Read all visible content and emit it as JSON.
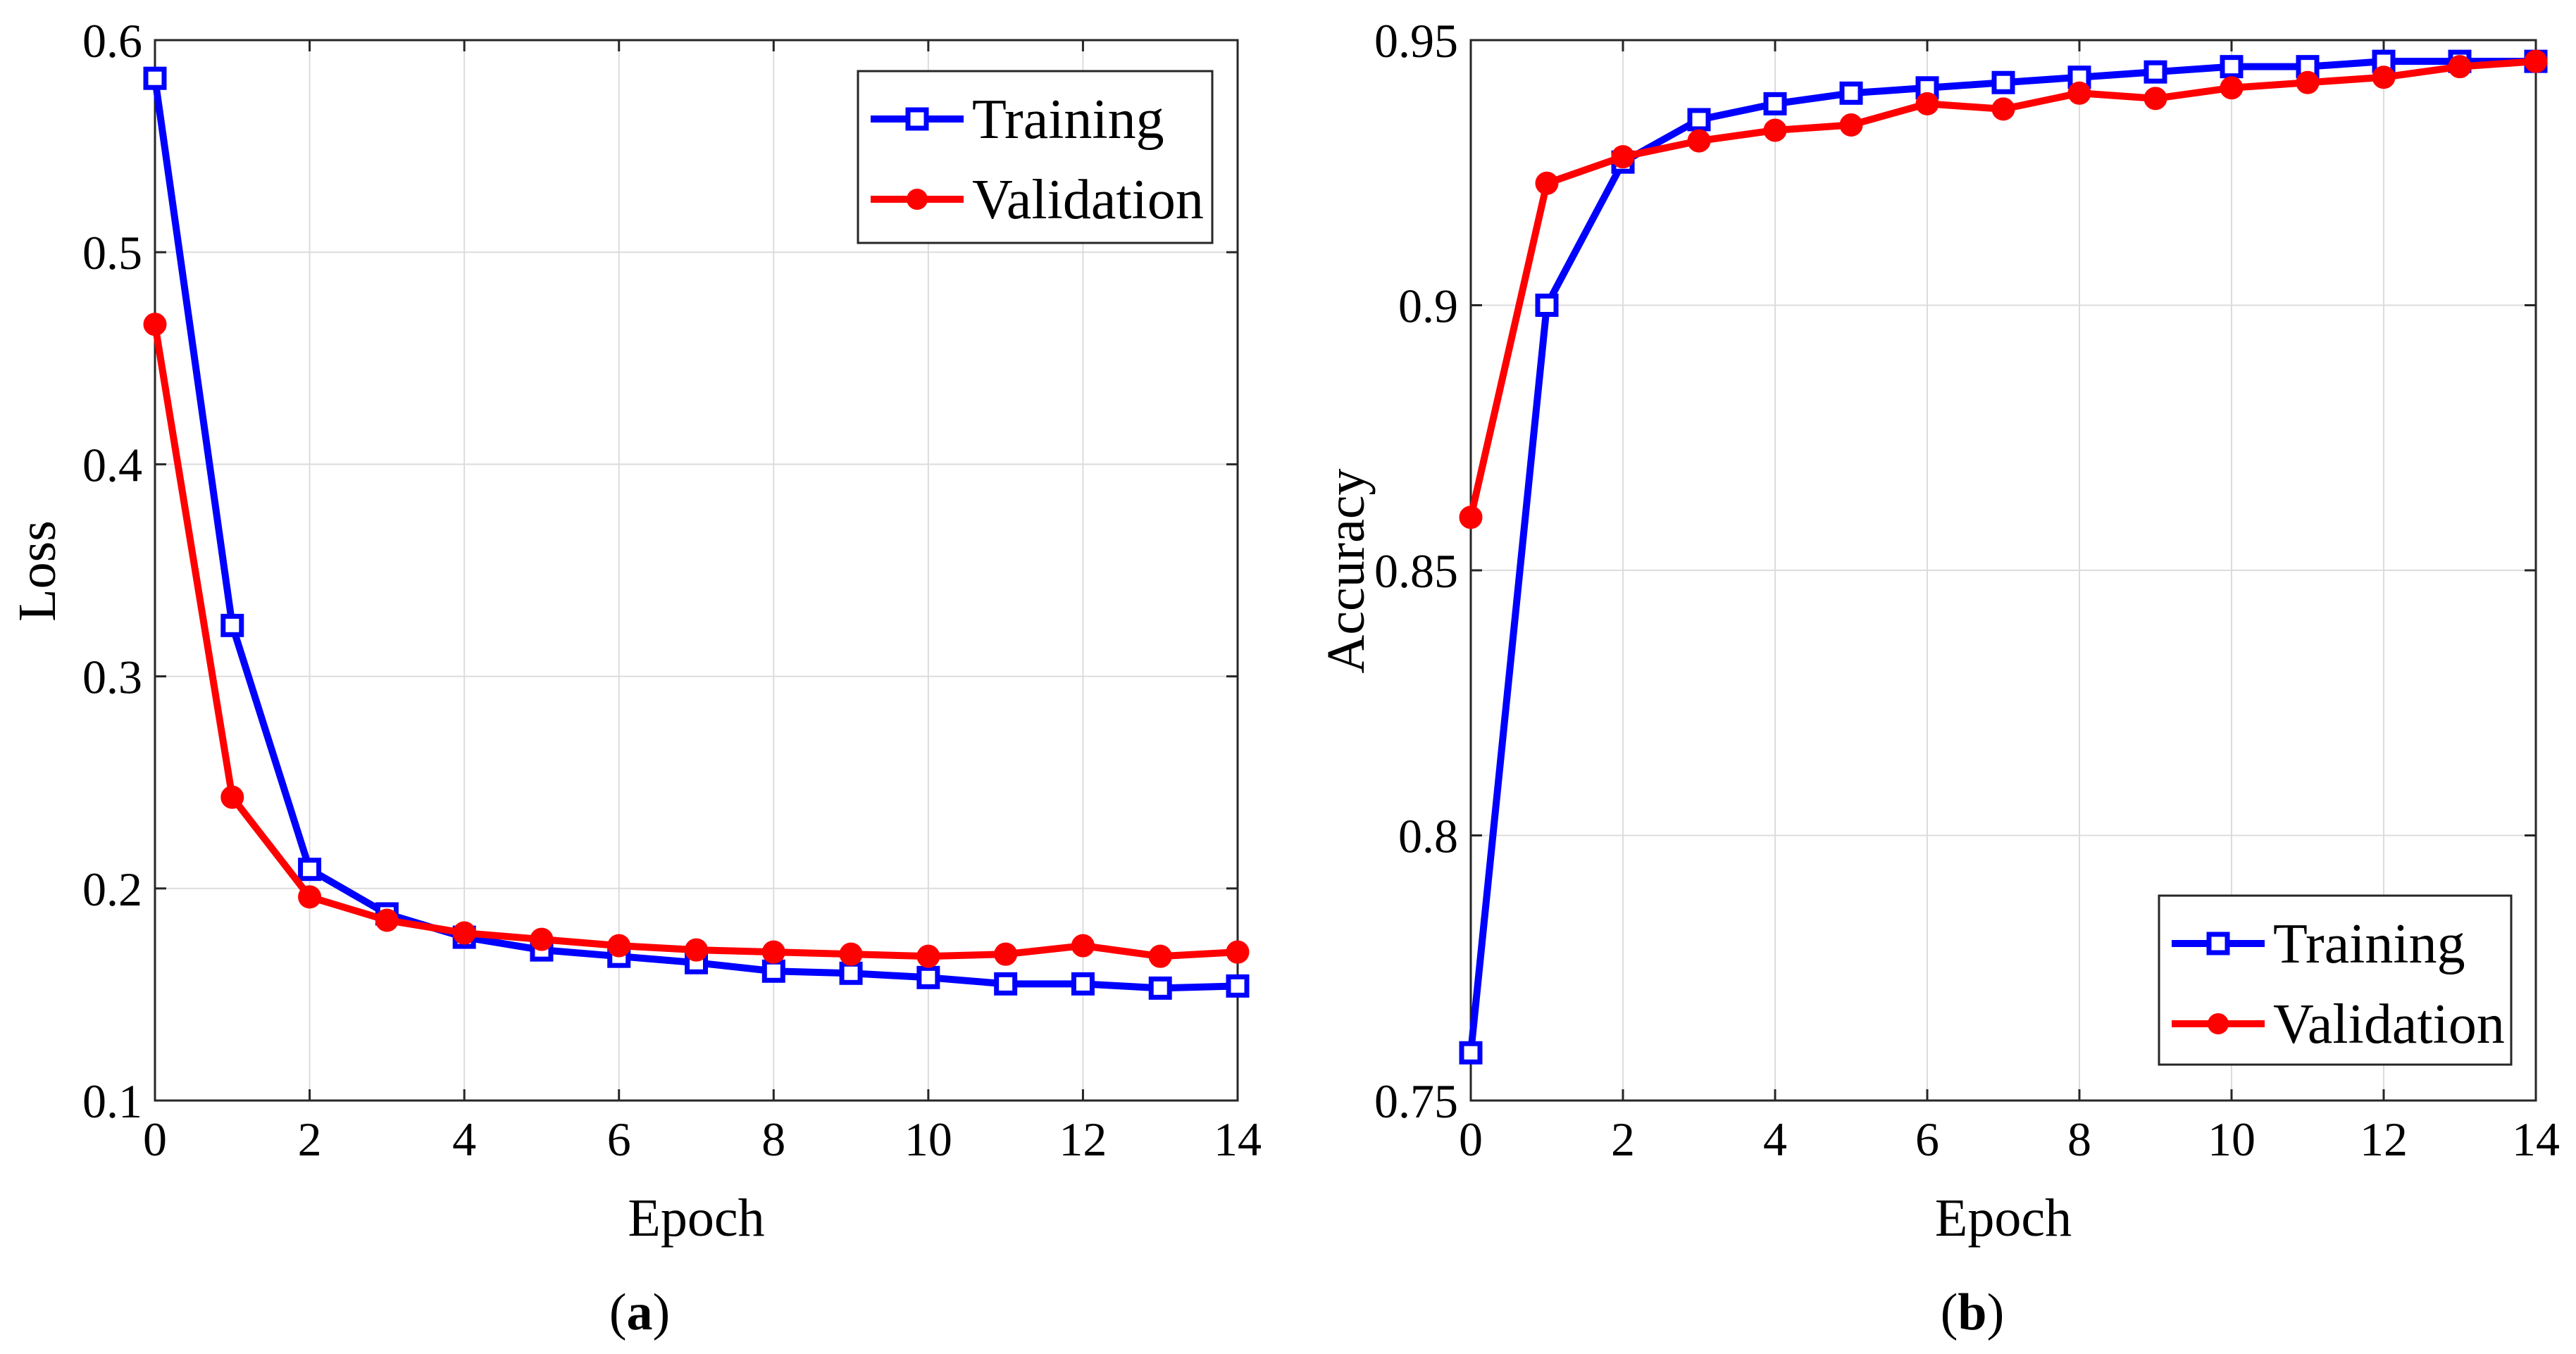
{
  "figure": {
    "captions": [
      {
        "open": "(",
        "letter": "a",
        "close": ")"
      },
      {
        "open": "(",
        "letter": "b",
        "close": ")"
      }
    ]
  },
  "chart_data": [
    {
      "type": "line",
      "id": "a",
      "title": "",
      "xlabel": "Epoch",
      "ylabel": "Loss",
      "xlim": [
        0,
        14
      ],
      "ylim": [
        0.1,
        0.6
      ],
      "xticks": [
        0,
        2,
        4,
        6,
        8,
        10,
        12,
        14
      ],
      "yticks": [
        0.1,
        0.2,
        0.3,
        0.4,
        0.5,
        0.6
      ],
      "ytick_labels": [
        "0.1",
        "0.2",
        "0.3",
        "0.4",
        "0.5",
        "0.6"
      ],
      "grid": true,
      "legend_position": "top-right",
      "x": [
        0,
        1,
        2,
        3,
        4,
        5,
        6,
        7,
        8,
        9,
        10,
        11,
        12,
        13,
        14
      ],
      "series": [
        {
          "name": "Training",
          "color": "#0000ff",
          "marker": "square",
          "values": [
            0.582,
            0.324,
            0.209,
            0.188,
            0.177,
            0.171,
            0.168,
            0.165,
            0.161,
            0.16,
            0.158,
            0.155,
            0.155,
            0.153,
            0.154
          ]
        },
        {
          "name": "Validation",
          "color": "#ff0000",
          "marker": "circle",
          "values": [
            0.466,
            0.243,
            0.196,
            0.185,
            0.179,
            0.176,
            0.173,
            0.171,
            0.17,
            0.169,
            0.168,
            0.169,
            0.173,
            0.168,
            0.17
          ]
        }
      ]
    },
    {
      "type": "line",
      "id": "b",
      "title": "",
      "xlabel": "Epoch",
      "ylabel": "Accuracy",
      "xlim": [
        0,
        14
      ],
      "ylim": [
        0.75,
        0.95
      ],
      "xticks": [
        0,
        2,
        4,
        6,
        8,
        10,
        12,
        14
      ],
      "yticks": [
        0.75,
        0.8,
        0.85,
        0.9,
        0.95
      ],
      "ytick_labels": [
        "0.75",
        "0.8",
        "0.85",
        "0.9",
        "0.95"
      ],
      "grid": true,
      "legend_position": "bottom-right",
      "x": [
        0,
        1,
        2,
        3,
        4,
        5,
        6,
        7,
        8,
        9,
        10,
        11,
        12,
        13,
        14
      ],
      "series": [
        {
          "name": "Training",
          "color": "#0000ff",
          "marker": "square",
          "values": [
            0.759,
            0.9,
            0.927,
            0.935,
            0.938,
            0.94,
            0.941,
            0.942,
            0.943,
            0.944,
            0.945,
            0.945,
            0.946,
            0.946,
            0.946
          ]
        },
        {
          "name": "Validation",
          "color": "#ff0000",
          "marker": "circle",
          "values": [
            0.86,
            0.923,
            0.928,
            0.931,
            0.933,
            0.934,
            0.938,
            0.937,
            0.94,
            0.939,
            0.941,
            0.942,
            0.943,
            0.945,
            0.946
          ]
        }
      ]
    }
  ]
}
